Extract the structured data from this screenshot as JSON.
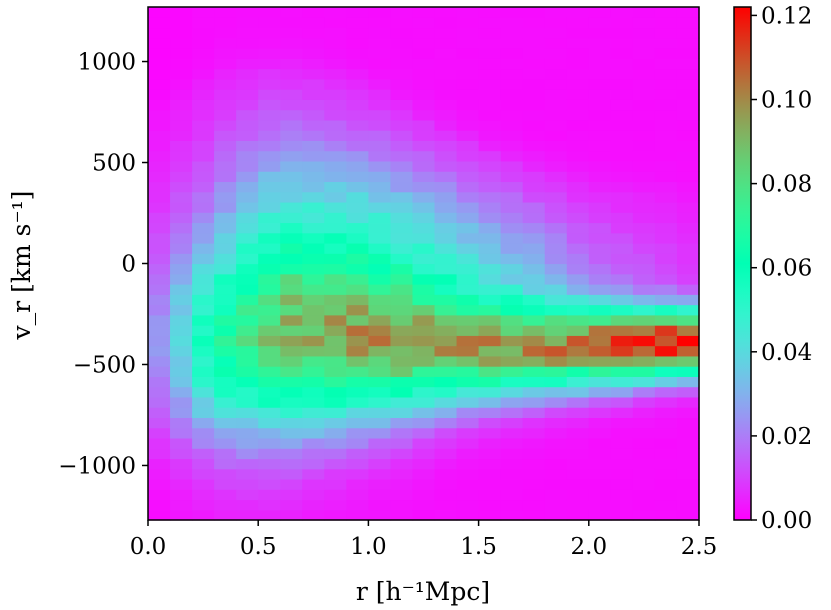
{
  "chart_data": {
    "type": "heatmap",
    "xlabel": "r [h⁻¹Mpc]",
    "ylabel": "v_r [km s⁻¹]",
    "xlim": [
      0.0,
      2.5
    ],
    "ylim": [
      -1270,
      1270
    ],
    "x_ticks": [
      "0.0",
      "0.5",
      "1.0",
      "1.5",
      "2.0",
      "2.5"
    ],
    "x_tick_values": [
      0.0,
      0.5,
      1.0,
      1.5,
      2.0,
      2.5
    ],
    "y_ticks": [
      "−1000",
      "−500",
      "0",
      "500",
      "1000"
    ],
    "y_tick_values": [
      -1000,
      -500,
      0,
      500,
      1000
    ],
    "x_bins": 25,
    "y_bins": 50,
    "colorbar": {
      "range": [
        0.0,
        0.122
      ],
      "ticks": [
        "0.00",
        "0.02",
        "0.04",
        "0.06",
        "0.08",
        "0.10",
        "0.12"
      ],
      "tick_values": [
        0.0,
        0.02,
        0.04,
        0.06,
        0.08,
        0.1,
        0.12
      ],
      "colormap": "rainbow"
    },
    "density_model": {
      "description_note": "",
      "components": [
        {
          "kind": "infall_stream",
          "y_mean_at": [
            [
              0.5,
              -420
            ],
            [
              1.5,
              -430
            ],
            [
              2.5,
              -390
            ]
          ],
          "y_sigma_at": [
            [
              0.5,
              320
            ],
            [
              1.5,
              170
            ],
            [
              2.5,
              110
            ]
          ],
          "peak_at": [
            [
              0.5,
              0.045
            ],
            [
              1.0,
              0.058
            ],
            [
              1.5,
              0.075
            ],
            [
              2.0,
              0.098
            ],
            [
              2.5,
              0.12
            ]
          ]
        },
        {
          "kind": "virialized_halo",
          "y_mean": -50,
          "y_sigma_at": [
            [
              0.3,
              520
            ],
            [
              1.0,
              420
            ],
            [
              1.5,
              330
            ],
            [
              2.0,
              260
            ]
          ],
          "peak_at": [
            [
              0.3,
              0.02
            ],
            [
              0.6,
              0.05
            ],
            [
              1.0,
              0.052
            ],
            [
              1.5,
              0.035
            ],
            [
              2.0,
              0.015
            ],
            [
              2.5,
              0.005
            ]
          ]
        }
      ]
    }
  }
}
